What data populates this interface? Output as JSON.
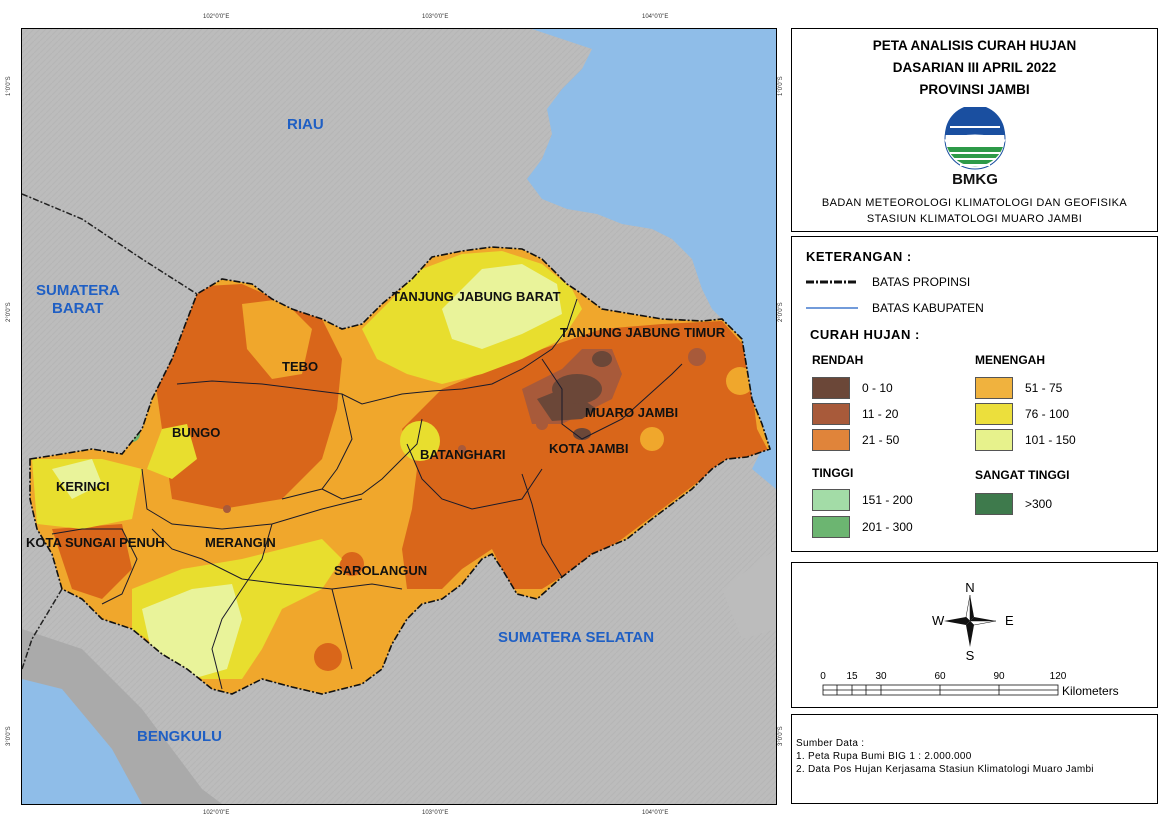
{
  "map": {
    "neighbors": {
      "riau": "RIAU",
      "sumbar_1": "SUMATERA",
      "sumbar_2": "BARAT",
      "sumsel": "SUMATERA SELATAN",
      "bengkulu": "BENGKULU"
    },
    "regencies": {
      "tanjabbar": "TANJUNG JABUNG BARAT",
      "tanjabtim": "TANJUNG JABUNG TIMUR",
      "tebo": "TEBO",
      "bungo": "BUNGO",
      "muarojambi": "MUARO JAMBI",
      "kotajambi": "KOTA JAMBI",
      "batanghari": "BATANGHARI",
      "kerinci": "KERINCI",
      "sungaipenuh": "KOTA SUNGAI PENUH",
      "merangin": "MERANGIN",
      "sarolangun": "SAROLANGUN"
    },
    "coords": {
      "top": [
        "102°0'0\"E",
        "103°0'0\"E",
        "104°0'0\"E"
      ],
      "bottom": [
        "102°0'0\"E",
        "103°0'0\"E",
        "104°0'0\"E"
      ],
      "left": [
        "1°0'0\"S",
        "2°0'0\"S",
        "3°0'0\"S"
      ],
      "right": [
        "1°0'0\"S",
        "2°0'0\"S",
        "3°0'0\"S"
      ]
    }
  },
  "title": {
    "line1": "PETA ANALISIS CURAH HUJAN",
    "line2": "DASARIAN III APRIL 2022",
    "line3": "PROVINSI JAMBI",
    "logo_text": "BMKG",
    "agency1": "BADAN METEOROLOGI KLIMATOLOGI DAN GEOFISIKA",
    "agency2": "STASIUN KLIMATOLOGI MUARO JAMBI"
  },
  "legend": {
    "heading": "KETERANGAN :",
    "boundary_prov": "BATAS PROPINSI",
    "boundary_kab": "BATAS KABUPATEN",
    "rain_heading": "CURAH HUJAN :",
    "categories": {
      "rendah": "RENDAH",
      "menengah": "MENENGAH",
      "tinggi": "TINGGI",
      "sangat_tinggi": "SANGAT TINGGI"
    },
    "classes": [
      {
        "label": "0 - 10",
        "color": "#6b4738"
      },
      {
        "label": "11 - 20",
        "color": "#a85a3a"
      },
      {
        "label": "21 - 50",
        "color": "#e0843a"
      },
      {
        "label": "51 - 75",
        "color": "#f0b23e"
      },
      {
        "label": "76 - 100",
        "color": "#ecdf3c"
      },
      {
        "label": "101 - 150",
        "color": "#e7f28c"
      },
      {
        "label": "151 - 200",
        "color": "#a3dca7"
      },
      {
        "label": "201 - 300",
        "color": "#6cb571"
      },
      {
        "label": ">300",
        "color": "#3e7a4c"
      }
    ]
  },
  "compass": {
    "n": "N",
    "s": "S",
    "e": "E",
    "w": "W"
  },
  "scale": {
    "ticks": [
      "0",
      "15",
      "30",
      "60",
      "90",
      "120"
    ],
    "unit": "Kilometers"
  },
  "source": {
    "heading": "Sumber Data :",
    "line1": "1. Peta Rupa Bumi BIG 1 : 2.000.000",
    "line2": "2. Data Pos Hujan Kerjasama Stasiun Klimatologi Muaro Jambi"
  },
  "colors": {
    "sea": "#8fbde8",
    "terrain": "#bcbcbc",
    "label_blue": "#1f5fc4",
    "zone_21_50": "#d9661a",
    "zone_51_75": "#f0a72c",
    "zone_76_100": "#e8de2e",
    "zone_101_150": "#e9f39a"
  }
}
